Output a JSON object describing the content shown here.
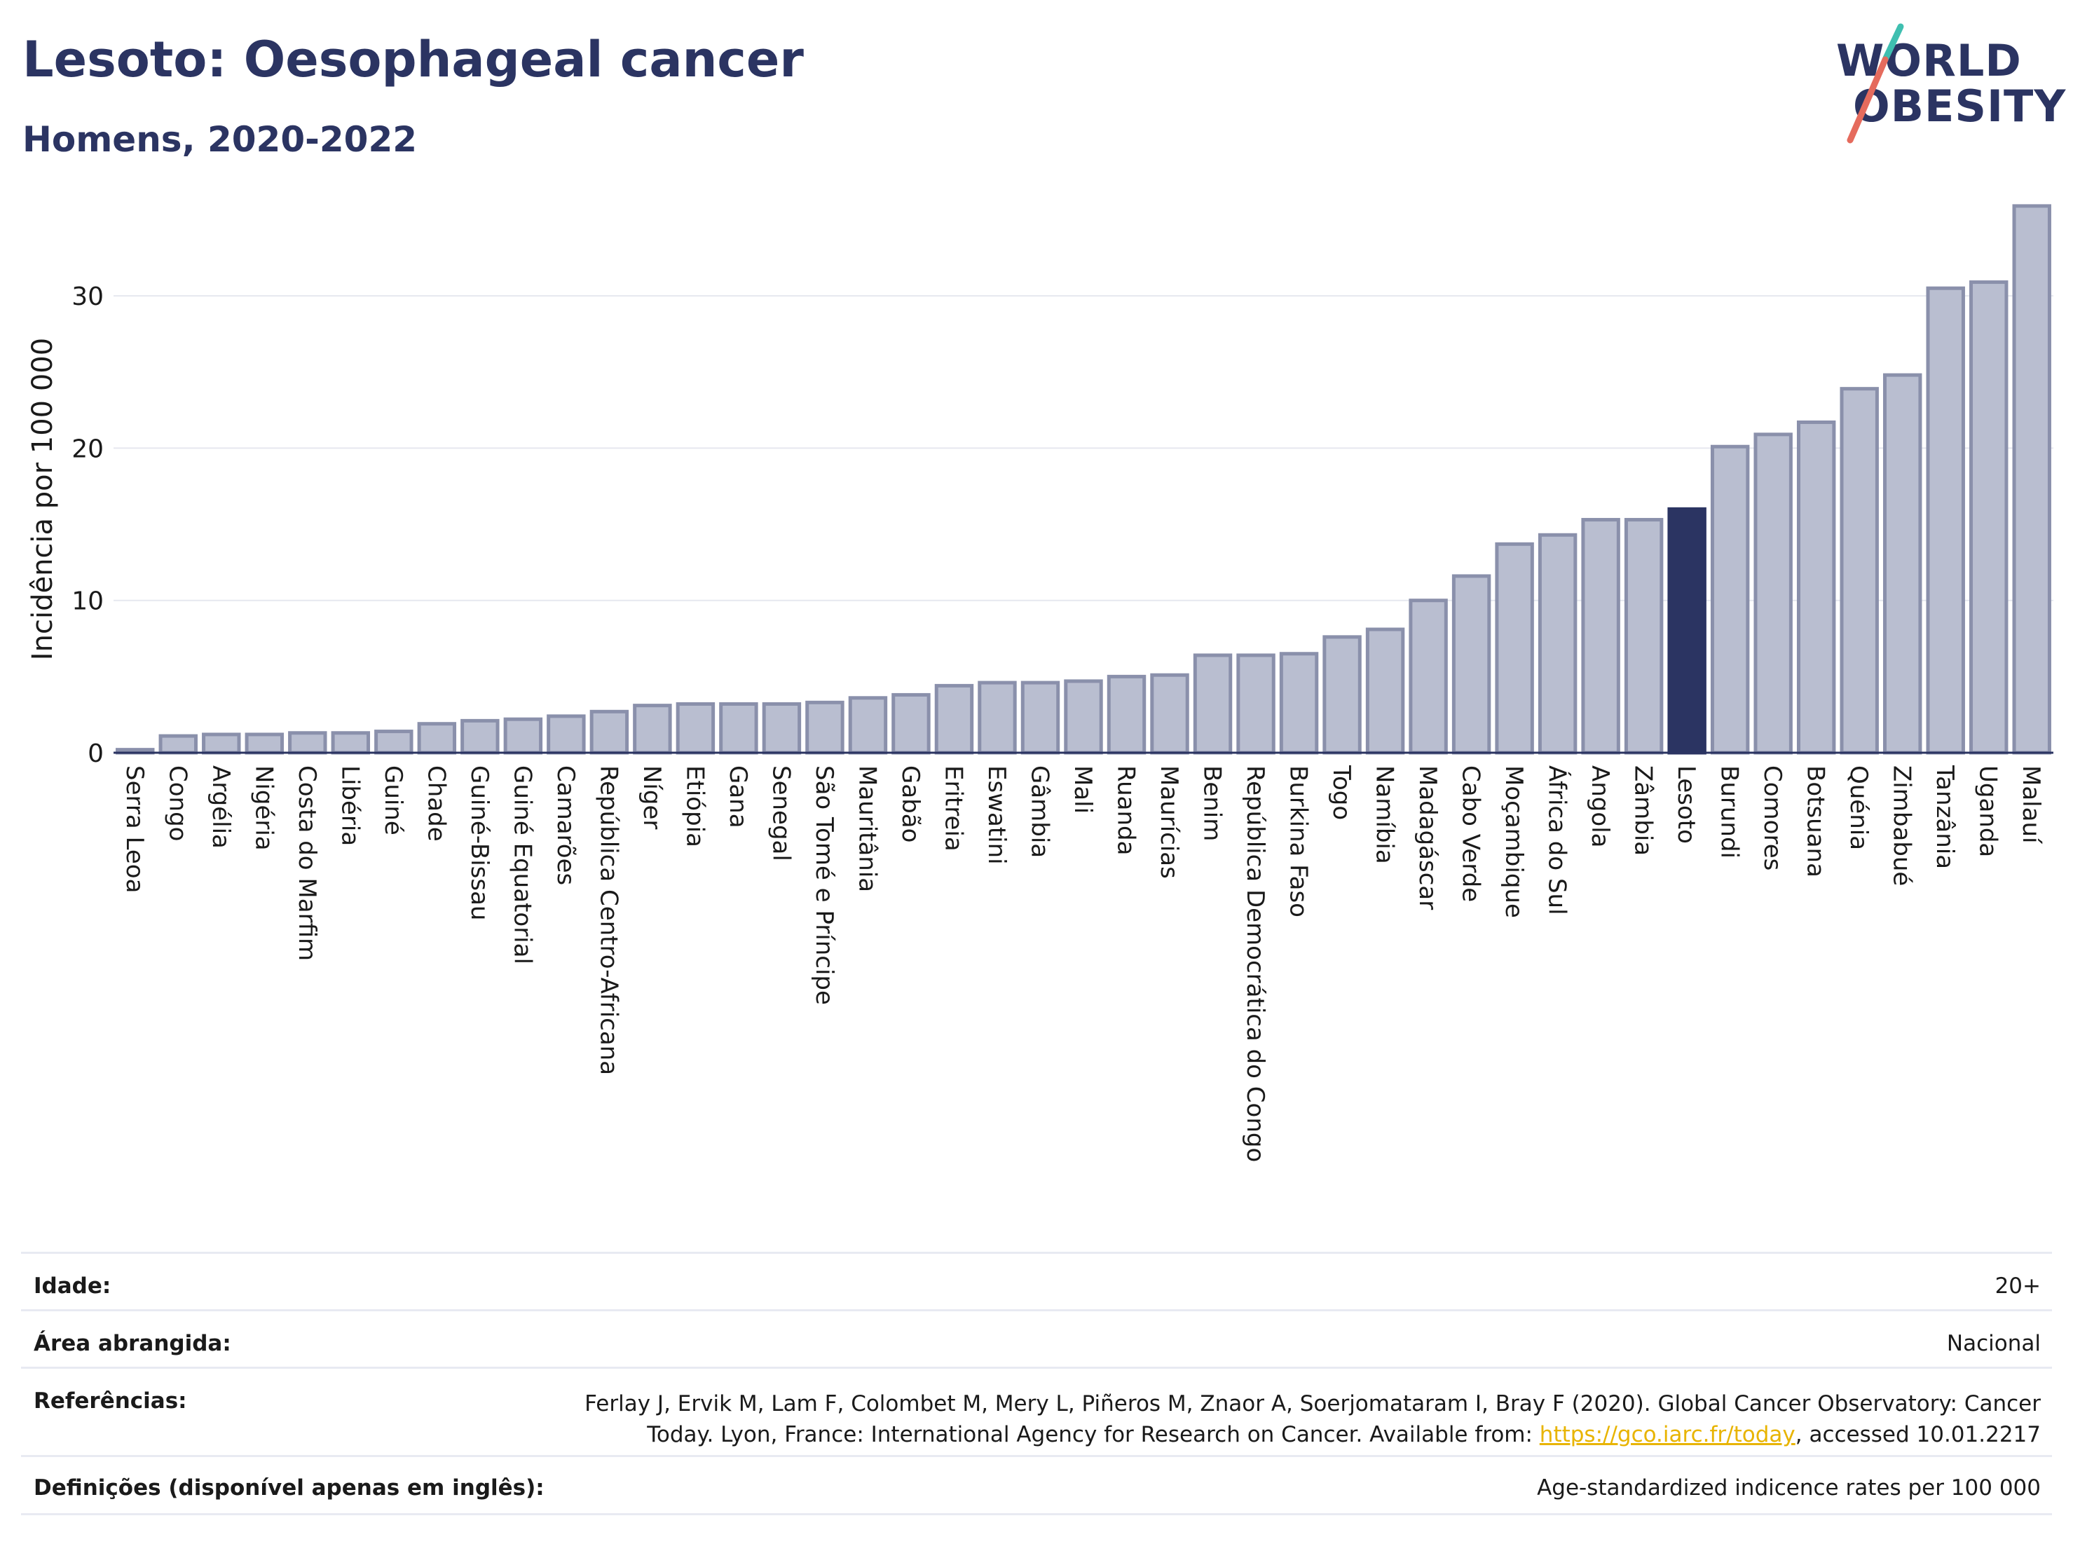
{
  "header": {
    "title": "Lesoto: Oesophageal cancer",
    "subtitle": "Homens, 2020-2022",
    "logo_line1": "WORLD",
    "logo_line2": "OBESITY"
  },
  "colors": {
    "title": "#2b3462",
    "bar": "#b9bed0",
    "bar_edge": "#8a90ab",
    "highlight": "#2b3462",
    "logo_teal": "#3fbfb0",
    "logo_coral": "#e56b5d"
  },
  "chart_data": {
    "type": "bar",
    "ylabel": "Incidência por 100 000",
    "ylim": [
      0,
      37
    ],
    "yticks": [
      0,
      10,
      20,
      30
    ],
    "grid": true,
    "highlight": "Lesoto",
    "categories": [
      "Serra Leoa",
      "Congo",
      "Argélia",
      "Nigéria",
      "Costa do Marfim",
      "Libéria",
      "Guiné",
      "Chade",
      "Guiné-Bissau",
      "Guiné Equatorial",
      "Camarões",
      "República Centro-Africana",
      "Níger",
      "Etiópia",
      "Gana",
      "Senegal",
      "São Tomé e Príncipe",
      "Mauritânia",
      "Gabão",
      "Eritreia",
      "Eswatini",
      "Gâmbia",
      "Mali",
      "Ruanda",
      "Maurícias",
      "Benim",
      "República Democrática do Congo",
      "Burkina Faso",
      "Togo",
      "Namíbia",
      "Madagáscar",
      "Cabo Verde",
      "Moçambique",
      "África do Sul",
      "Angola",
      "Zâmbia",
      "Lesoto",
      "Burundi",
      "Comores",
      "Botsuana",
      "Quénia",
      "Zimbabué",
      "Tanzânia",
      "Uganda",
      "Malauí"
    ],
    "values": [
      0.2,
      1.1,
      1.2,
      1.2,
      1.3,
      1.3,
      1.4,
      1.9,
      2.1,
      2.2,
      2.4,
      2.7,
      3.1,
      3.2,
      3.2,
      3.2,
      3.3,
      3.6,
      3.8,
      4.4,
      4.6,
      4.6,
      4.7,
      5.0,
      5.1,
      6.4,
      6.4,
      6.5,
      7.6,
      8.1,
      10.0,
      11.6,
      13.7,
      14.3,
      15.3,
      15.3,
      16.0,
      20.1,
      20.9,
      21.7,
      23.9,
      24.8,
      30.5,
      30.9,
      35.9
    ]
  },
  "details": {
    "age_label": "Idade:",
    "age_value": "20+",
    "area_label": "Área abrangida:",
    "area_value": "Nacional",
    "ref_label": "Referências:",
    "ref_line1": "Ferlay J, Ervik M, Lam F, Colombet M, Mery L, Piñeros M, Znaor A, Soerjomataram I, Bray F (2020). Global Cancer Observatory: Cancer",
    "ref_line2_pre": "Today. Lyon, France: International Agency for Research on Cancer. Available from: ",
    "ref_link": "https://gco.iarc.fr/today",
    "ref_line2_post": ", accessed 10.01.2217",
    "def_label": "Definições (disponível apenas em inglês):",
    "def_value": "Age-standardized indicence rates per 100 000"
  }
}
